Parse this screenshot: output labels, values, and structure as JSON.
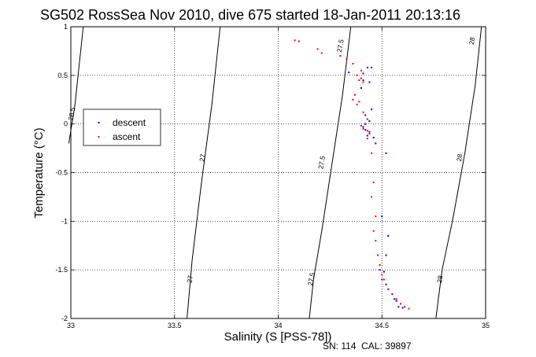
{
  "chart_data": {
    "type": "scatter",
    "title": "SG502 RossSea Nov 2010, dive 675 started 18-Jan-2011 20:13:16",
    "xlabel": "Salinity (S [PSS-78])",
    "ylabel": "Temperature (°C)",
    "xlim": [
      33,
      35
    ],
    "ylim": [
      -2,
      1
    ],
    "x_ticks": [
      33,
      33.5,
      34,
      34.5,
      35
    ],
    "x_tick_labels": [
      "33",
      "33.5",
      "34",
      "34.5",
      "35"
    ],
    "y_ticks": [
      -2,
      -1.5,
      -1,
      -0.5,
      0,
      0.5,
      1
    ],
    "y_tick_labels": [
      "-2",
      "-1.5",
      "-1",
      "-0.5",
      "0",
      "0.5",
      "1"
    ],
    "grid": true,
    "legend_position": "left",
    "footer": "SN: 114  CAL: 39897",
    "density_contours": [
      {
        "label": "26.5",
        "points": [
          [
            33.06,
            1.0
          ],
          [
            33.04,
            0.6
          ],
          [
            33.02,
            0.2
          ],
          [
            32.99,
            -0.2
          ]
        ],
        "label_at": [
          33.015,
          0.1
        ]
      },
      {
        "label": "27",
        "points": [
          [
            33.72,
            1.0
          ],
          [
            33.68,
            0.2
          ],
          [
            33.63,
            -0.6
          ],
          [
            33.585,
            -1.4
          ],
          [
            33.56,
            -2.0
          ]
        ],
        "label_at": [
          33.645,
          -0.35
        ],
        "label_at2": [
          33.585,
          -1.6
        ]
      },
      {
        "label": "27.5",
        "points": [
          [
            34.35,
            1.0
          ],
          [
            34.31,
            0.3
          ],
          [
            34.26,
            -0.4
          ],
          [
            34.21,
            -1.1
          ],
          [
            34.17,
            -1.6
          ],
          [
            34.15,
            -2.0
          ]
        ],
        "label_at": [
          34.31,
          0.8
        ],
        "label_at2": [
          34.22,
          -0.4
        ],
        "label_at3": [
          34.17,
          -1.6
        ]
      },
      {
        "label": "28",
        "points": [
          [
            34.98,
            1.0
          ],
          [
            34.95,
            0.4
          ],
          [
            34.9,
            -0.3
          ],
          [
            34.84,
            -1.0
          ],
          [
            34.79,
            -1.5
          ],
          [
            34.76,
            -2.0
          ]
        ],
        "label_at": [
          34.945,
          0.85
        ],
        "label_at2": [
          34.885,
          -0.35
        ],
        "label_at3": [
          34.79,
          -1.6
        ]
      }
    ],
    "series": [
      {
        "name": "descent",
        "color": "#0000ff",
        "points": [
          [
            34.43,
            0.58
          ],
          [
            34.45,
            0.58
          ],
          [
            34.41,
            0.52
          ],
          [
            34.34,
            0.53
          ],
          [
            34.4,
            0.47
          ],
          [
            34.41,
            0.45
          ],
          [
            34.44,
            0.43
          ],
          [
            34.4,
            0.37
          ],
          [
            34.45,
            0.15
          ],
          [
            34.42,
            0.09
          ],
          [
            34.43,
            0.05
          ],
          [
            34.44,
            0.03
          ],
          [
            34.42,
            0.0
          ],
          [
            34.41,
            -0.03
          ],
          [
            34.42,
            -0.06
          ],
          [
            34.44,
            -0.08
          ],
          [
            34.43,
            -0.12
          ],
          [
            34.46,
            -0.14
          ],
          [
            34.47,
            -0.2
          ],
          [
            34.52,
            -0.3
          ],
          [
            34.5,
            -0.95
          ],
          [
            34.53,
            -1.15
          ],
          [
            34.52,
            -1.35
          ],
          [
            34.49,
            -1.5
          ],
          [
            34.51,
            -1.52
          ],
          [
            34.5,
            -1.6
          ],
          [
            34.52,
            -1.65
          ],
          [
            34.53,
            -1.7
          ],
          [
            34.55,
            -1.75
          ],
          [
            34.56,
            -1.8
          ],
          [
            34.57,
            -1.82
          ],
          [
            34.58,
            -1.88
          ],
          [
            34.6,
            -1.89
          ]
        ]
      },
      {
        "name": "ascent",
        "color": "#ff0000",
        "points": [
          [
            34.08,
            0.86
          ],
          [
            34.1,
            0.85
          ],
          [
            34.19,
            0.77
          ],
          [
            34.21,
            0.73
          ],
          [
            34.3,
            0.7
          ],
          [
            34.33,
            0.67
          ],
          [
            34.36,
            0.62
          ],
          [
            34.4,
            0.55
          ],
          [
            34.38,
            0.5
          ],
          [
            34.4,
            0.47
          ],
          [
            34.39,
            0.45
          ],
          [
            34.41,
            0.43
          ],
          [
            34.37,
            0.3
          ],
          [
            34.36,
            0.25
          ],
          [
            34.39,
            0.23
          ],
          [
            34.38,
            0.2
          ],
          [
            34.41,
            0.12
          ],
          [
            34.43,
            0.05
          ],
          [
            34.42,
            0.0
          ],
          [
            34.4,
            -0.02
          ],
          [
            34.41,
            -0.05
          ],
          [
            34.43,
            -0.07
          ],
          [
            34.44,
            -0.1
          ],
          [
            34.43,
            -0.15
          ],
          [
            34.45,
            -0.3
          ],
          [
            34.46,
            -0.6
          ],
          [
            34.45,
            -0.75
          ],
          [
            34.47,
            -0.95
          ],
          [
            34.46,
            -1.1
          ],
          [
            34.47,
            -1.2
          ],
          [
            34.48,
            -1.35
          ],
          [
            34.49,
            -1.45
          ],
          [
            34.5,
            -1.55
          ],
          [
            34.51,
            -1.6
          ],
          [
            34.53,
            -1.7
          ],
          [
            34.55,
            -1.75
          ],
          [
            34.57,
            -1.8
          ],
          [
            34.59,
            -1.85
          ],
          [
            34.61,
            -1.88
          ],
          [
            34.63,
            -1.9
          ]
        ]
      }
    ]
  }
}
